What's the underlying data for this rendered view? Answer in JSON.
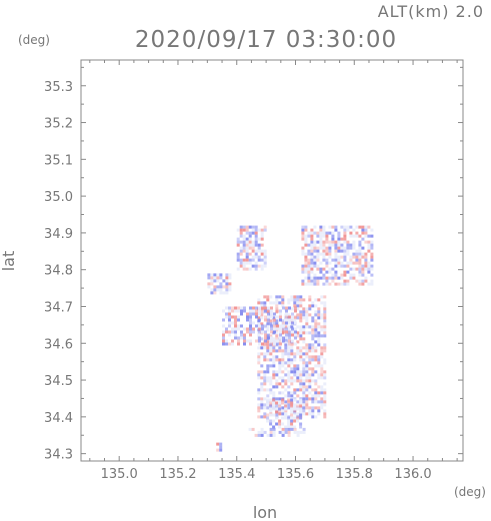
{
  "chart_data": {
    "type": "heatmap",
    "title": "2020/09/17 03:30:00",
    "altitude_label": "ALT(km)",
    "altitude_value": "2.0",
    "xlabel": "lon",
    "ylabel": "lat",
    "x_unit": "(deg)",
    "y_unit": "(deg)",
    "xlim": [
      134.87,
      136.17
    ],
    "ylim": [
      34.28,
      35.37
    ],
    "x_ticks": [
      135.0,
      135.2,
      135.4,
      135.6,
      135.8,
      136.0
    ],
    "x_tick_labels": [
      "135.0",
      "135.2",
      "135.4",
      "135.6",
      "135.8",
      "136.0"
    ],
    "y_ticks": [
      34.3,
      34.4,
      34.5,
      34.6,
      34.7,
      34.8,
      34.9,
      35.0,
      35.1,
      35.2,
      35.3
    ],
    "y_tick_labels": [
      "34.3",
      "34.4",
      "34.5",
      "34.6",
      "34.7",
      "34.8",
      "34.9",
      "35.0",
      "35.1",
      "35.2",
      "35.3"
    ],
    "colors": {
      "positive": "#f08a8a",
      "negative": "#7f86ee",
      "neutral": "#e9ecfb"
    },
    "regions": [
      {
        "lon": [
          135.3,
          135.38
        ],
        "lat": [
          34.74,
          34.79
        ]
      },
      {
        "lon": [
          135.47,
          135.7
        ],
        "lat": [
          34.4,
          34.73
        ]
      },
      {
        "lon": [
          135.5,
          135.62
        ],
        "lat": [
          34.37,
          34.45
        ]
      },
      {
        "lon": [
          135.62,
          135.86
        ],
        "lat": [
          34.76,
          34.92
        ]
      },
      {
        "lon": [
          135.4,
          135.5
        ],
        "lat": [
          34.8,
          34.92
        ]
      },
      {
        "lon": [
          135.35,
          135.6
        ],
        "lat": [
          34.6,
          34.7
        ]
      },
      {
        "lon": [
          135.43,
          135.63
        ],
        "lat": [
          34.35,
          34.37
        ]
      },
      {
        "lon": [
          135.33,
          135.35
        ],
        "lat": [
          34.31,
          34.33
        ]
      }
    ]
  }
}
